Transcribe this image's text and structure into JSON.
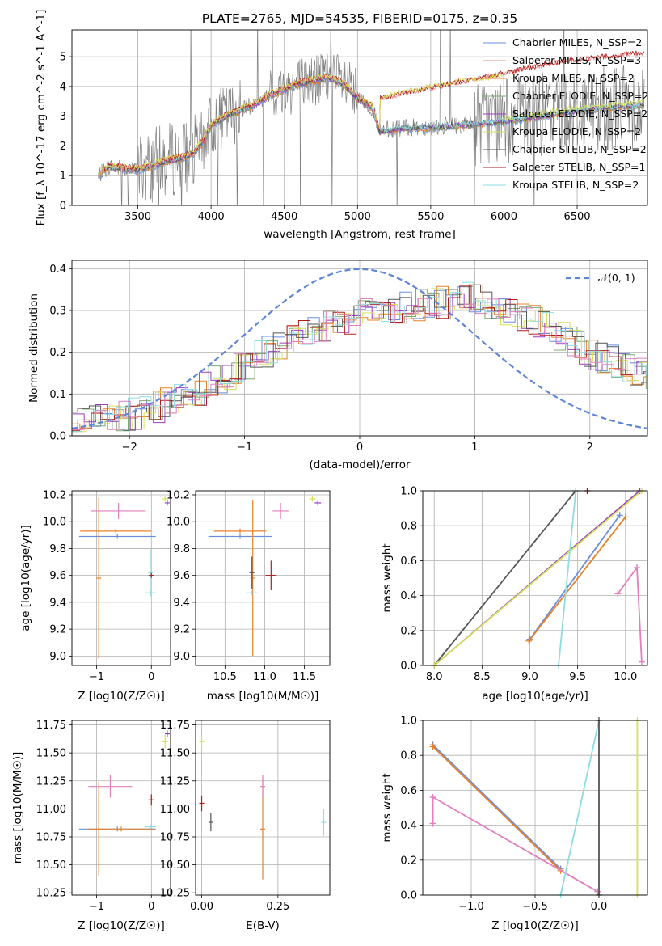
{
  "title": "PLATE=2765, MJD=54535, FIBERID=0175, z=0.35",
  "colors": {
    "chabrier_miles": "#6a8fdc",
    "salpeter_miles": "#e58b8b",
    "kroupa_miles": "#e8822a",
    "chabrier_elodie": "#7fa870",
    "salpeter_elodie": "#9b3fc1",
    "kroupa_elodie": "#d6e05a",
    "chabrier_stelib": "#555555",
    "salpeter_stelib": "#b01c1c",
    "kroupa_stelib": "#8fdde0",
    "pink": "#e27fbf",
    "data": "#7f7f7f",
    "normal": "#5f86d6"
  },
  "chart_data": [
    {
      "type": "line",
      "title": "PLATE=2765, MJD=54535, FIBERID=0175, z=0.35",
      "xlabel": "wavelength [Angstrom, rest frame]",
      "ylabel": "Flux [f_λ 10^-17 erg cm^-2 s^-1 A^-1]",
      "xlim": [
        3050,
        6980
      ],
      "ylim": [
        0,
        5.9
      ],
      "xticks": [
        "3500",
        "4000",
        "4500",
        "5000",
        "5500",
        "6000",
        "6500"
      ],
      "yticks": [
        "0",
        "1",
        "2",
        "3",
        "4",
        "5"
      ],
      "legend_position": "top-right",
      "legend": [
        "Chabrier MILES, N_SSP=2",
        "Salpeter MILES, N_SSP=3",
        "Kroupa MILES, N_SSP=2",
        "Chabrier ELODIE, N_SSP=2",
        "Salpeter ELODIE, N_SSP=2",
        "Kroupa ELODIE, N_SSP=2",
        "Chabrier STELIB, N_SSP=2",
        "Salpeter STELIB, N_SSP=1",
        "Kroupa STELIB, N_SSP=2"
      ],
      "continuum": {
        "x": [
          3230,
          3300,
          3400,
          3500,
          3600,
          3700,
          3800,
          3880,
          3950,
          4000,
          4100,
          4200,
          4300,
          4400,
          4500,
          4600,
          4700,
          4800,
          4900,
          5000,
          5100,
          5150,
          5300,
          5500,
          5700,
          5900,
          6100,
          6300,
          6500,
          6700,
          6960
        ],
        "y": [
          1.0,
          1.3,
          1.25,
          1.2,
          1.35,
          1.5,
          1.6,
          1.75,
          2.2,
          2.7,
          3.0,
          3.2,
          3.4,
          3.7,
          3.9,
          4.1,
          4.2,
          4.3,
          4.1,
          3.6,
          3.3,
          2.5,
          2.6,
          2.65,
          2.7,
          2.8,
          2.9,
          3.05,
          3.2,
          3.3,
          3.4
        ]
      },
      "red_models_high": {
        "x": [
          5150,
          5300,
          5500,
          5700,
          5900,
          6100,
          6300,
          6500,
          6700,
          6960
        ],
        "y": [
          3.55,
          3.7,
          3.9,
          4.1,
          4.3,
          4.5,
          4.7,
          4.85,
          4.95,
          5.1
        ]
      },
      "elodie_high": {
        "x": [
          5150,
          5300,
          5500,
          5700,
          5900,
          6000
        ],
        "y": [
          3.5,
          3.75,
          3.95,
          4.1,
          4.2,
          4.3
        ]
      }
    },
    {
      "type": "line",
      "xlabel": "(data-model)/error",
      "ylabel": "Normed distribution",
      "xlim": [
        -2.5,
        2.5
      ],
      "ylim": [
        0,
        0.42
      ],
      "xticks": [
        "−2",
        "−1",
        "0",
        "1",
        "2"
      ],
      "yticks": [
        "0.0",
        "0.1",
        "0.2",
        "0.3",
        "0.4"
      ],
      "legend": [
        "𝒩(0, 1)"
      ],
      "legend_position": "top-right",
      "histogram_envelope": {
        "x": [
          -2.5,
          -2.0,
          -1.5,
          -1.0,
          -0.5,
          0.0,
          0.5,
          1.0,
          1.5,
          2.0,
          2.5
        ],
        "y": [
          0.02,
          0.05,
          0.09,
          0.17,
          0.24,
          0.29,
          0.31,
          0.33,
          0.28,
          0.2,
          0.15
        ]
      }
    },
    {
      "type": "scatter",
      "xlabel": "Z [log10(Z/Z☉)]",
      "ylabel": "age  [log10(age/yr)]",
      "xlim": [
        -1.45,
        0.35
      ],
      "ylim": [
        8.93,
        10.23
      ],
      "xticks": [
        "−1",
        "0"
      ],
      "yticks": [
        "9.0",
        "9.2",
        "9.4",
        "9.6",
        "9.8",
        "10.0",
        "10.2"
      ],
      "points": [
        {
          "c": "chabrier_miles",
          "x": -0.62,
          "y": 9.89,
          "dx": 0.7,
          "dy": 0.0
        },
        {
          "c": "kroupa_miles",
          "x": -0.65,
          "y": 9.93,
          "dx": 0.65,
          "dy": 0.0
        },
        {
          "c": "kroupa_miles",
          "x": -0.96,
          "y": 9.58,
          "dx": 0.0,
          "dy": 0.6
        },
        {
          "c": "pink",
          "x": -0.6,
          "y": 10.08,
          "dx": 0.5,
          "dy": 0.06
        },
        {
          "c": "kroupa_stelib",
          "x": -0.01,
          "y": 9.47,
          "dx": 0.1,
          "dy": 0.02
        },
        {
          "c": "kroupa_stelib",
          "x": -0.02,
          "y": 9.62,
          "dx": 0.0,
          "dy": 0.18
        },
        {
          "c": "salpeter_stelib",
          "x": 0.0,
          "y": 9.6,
          "dx": 0.05,
          "dy": 0.0
        },
        {
          "c": "kroupa_elodie",
          "x": 0.25,
          "y": 10.17,
          "dx": 0.05,
          "dy": 0.02
        },
        {
          "c": "salpeter_elodie",
          "x": 0.29,
          "y": 10.14,
          "dx": 0.04,
          "dy": 0.02
        }
      ]
    },
    {
      "type": "scatter",
      "xlabel": "mass [log10(M/M☉)]",
      "ylabel": "",
      "xlim": [
        10.13,
        11.82
      ],
      "ylim": [
        8.93,
        10.23
      ],
      "xticks": [
        "10.5",
        "11.0",
        "11.5"
      ],
      "yticks": [
        "9.0",
        "9.2",
        "9.4",
        "9.6",
        "9.8",
        "10.0",
        "10.2"
      ],
      "points": [
        {
          "c": "chabrier_miles",
          "x": 10.69,
          "y": 9.89,
          "dx": 0.4,
          "dy": 0.0
        },
        {
          "c": "kroupa_miles",
          "x": 10.69,
          "y": 9.93,
          "dx": 0.33,
          "dy": 0.0
        },
        {
          "c": "kroupa_miles",
          "x": 10.85,
          "y": 9.58,
          "dx": 0.0,
          "dy": 0.58
        },
        {
          "c": "pink",
          "x": 11.2,
          "y": 10.08,
          "dx": 0.1,
          "dy": 0.06
        },
        {
          "c": "kroupa_stelib",
          "x": 10.84,
          "y": 9.47,
          "dx": 0.07,
          "dy": 0.0
        },
        {
          "c": "chabrier_stelib",
          "x": 10.84,
          "y": 9.62,
          "dx": 0.0,
          "dy": 0.12
        },
        {
          "c": "salpeter_stelib",
          "x": 11.08,
          "y": 9.6,
          "dx": 0.07,
          "dy": 0.11
        },
        {
          "c": "kroupa_elodie",
          "x": 11.6,
          "y": 10.17,
          "dx": 0.04,
          "dy": 0.02
        },
        {
          "c": "salpeter_elodie",
          "x": 11.67,
          "y": 10.14,
          "dx": 0.04,
          "dy": 0.02
        }
      ]
    },
    {
      "type": "line",
      "xlabel": "age  [log10(age/yr)]",
      "ylabel": "mass weight",
      "xlim": [
        7.88,
        10.23
      ],
      "ylim": [
        0,
        1
      ],
      "xticks": [
        "8.0",
        "8.5",
        "9.0",
        "9.5",
        "10.0"
      ],
      "yticks": [
        "0.0",
        "0.2",
        "0.4",
        "0.6",
        "0.8",
        "1.0"
      ],
      "series": [
        {
          "c": "chabrier_stelib",
          "x": [
            8.0,
            9.48
          ],
          "y": [
            0.0,
            1.0
          ]
        },
        {
          "c": "salpeter_elodie",
          "x": [
            8.0,
            10.15
          ],
          "y": [
            0.0,
            1.0
          ]
        },
        {
          "c": "kroupa_elodie",
          "x": [
            8.0,
            10.17
          ],
          "y": [
            0.0,
            1.0
          ]
        },
        {
          "c": "chabrier_miles",
          "x": [
            9.0,
            9.94
          ],
          "y": [
            0.15,
            0.86
          ]
        },
        {
          "c": "kroupa_miles",
          "x": [
            8.99,
            10.0
          ],
          "y": [
            0.14,
            0.85
          ]
        },
        {
          "c": "kroupa_stelib",
          "x": [
            9.3,
            9.48
          ],
          "y": [
            0.0,
            1.0
          ]
        },
        {
          "c": "pink",
          "x": [
            9.92,
            10.12,
            10.17
          ],
          "y": [
            0.41,
            0.56,
            0.02
          ]
        },
        {
          "c": "salpeter_stelib",
          "x": [
            9.6
          ],
          "y": [
            1.0
          ]
        }
      ]
    },
    {
      "type": "scatter",
      "xlabel": "Z [log10(Z/Z☉)]",
      "ylabel": "mass [log10(M/M☉)]",
      "xlim": [
        -1.45,
        0.35
      ],
      "ylim": [
        10.23,
        11.79
      ],
      "xticks": [
        "−1",
        "0"
      ],
      "yticks": [
        "10.25",
        "10.50",
        "10.75",
        "11.00",
        "11.25",
        "11.50",
        "11.75"
      ],
      "points": [
        {
          "c": "chabrier_miles",
          "x": -0.62,
          "y": 10.82,
          "dx": 0.7,
          "dy": 0.0
        },
        {
          "c": "kroupa_miles",
          "x": -0.55,
          "y": 10.82,
          "dx": 0.6,
          "dy": 0.0
        },
        {
          "c": "kroupa_miles",
          "x": -0.96,
          "y": 10.82,
          "dx": 0.0,
          "dy": 0.42
        },
        {
          "c": "pink",
          "x": -0.75,
          "y": 11.2,
          "dx": 0.4,
          "dy": 0.1
        },
        {
          "c": "kroupa_stelib",
          "x": -0.02,
          "y": 10.84,
          "dx": 0.1,
          "dy": 0.0
        },
        {
          "c": "salpeter_stelib",
          "x": 0.0,
          "y": 11.08,
          "dx": 0.05,
          "dy": 0.05
        },
        {
          "c": "kroupa_elodie",
          "x": 0.25,
          "y": 11.6,
          "dx": 0.05,
          "dy": 0.06
        },
        {
          "c": "salpeter_elodie",
          "x": 0.29,
          "y": 11.67,
          "dx": 0.04,
          "dy": 0.03
        }
      ]
    },
    {
      "type": "scatter",
      "xlabel": "E(B-V)",
      "ylabel": "",
      "xlim": [
        -0.02,
        0.42
      ],
      "ylim": [
        10.23,
        11.79
      ],
      "xticks": [
        "0.00",
        "0.25"
      ],
      "yticks": [
        "10.25",
        "10.50",
        "10.75",
        "11.00",
        "11.25",
        "11.50",
        "11.75"
      ],
      "points": [
        {
          "c": "kroupa_elodie",
          "x": 0.0,
          "y": 11.6,
          "dx": 0.0,
          "dy": 0.06
        },
        {
          "c": "salpeter_stelib",
          "x": 0.0,
          "y": 11.05,
          "dx": 0.0,
          "dy": 0.07
        },
        {
          "c": "chabrier_stelib",
          "x": 0.03,
          "y": 10.88,
          "dx": 0.0,
          "dy": 0.08
        },
        {
          "c": "kroupa_miles",
          "x": 0.2,
          "y": 10.82,
          "dx": 0.0,
          "dy": 0.45
        },
        {
          "c": "pink",
          "x": 0.2,
          "y": 11.2,
          "dx": 0.0,
          "dy": 0.1
        },
        {
          "c": "kroupa_stelib",
          "x": 0.4,
          "y": 10.88,
          "dx": 0.0,
          "dy": 0.12
        }
      ]
    },
    {
      "type": "line",
      "xlabel": "Z [log10(Z/Z☉)]",
      "ylabel": "mass weight",
      "xlim": [
        -1.38,
        0.38
      ],
      "ylim": [
        0,
        1
      ],
      "xticks": [
        "−1.0",
        "−0.5",
        "0.0"
      ],
      "yticks": [
        "0.0",
        "0.2",
        "0.4",
        "0.6",
        "0.8",
        "1.0"
      ],
      "series": [
        {
          "c": "chabrier_miles",
          "x": [
            -1.3,
            -0.3
          ],
          "y": [
            0.86,
            0.15
          ]
        },
        {
          "c": "kroupa_miles",
          "x": [
            -1.3,
            -0.3
          ],
          "y": [
            0.85,
            0.14
          ]
        },
        {
          "c": "pink",
          "x": [
            -1.3,
            -1.3,
            -0.01
          ],
          "y": [
            0.41,
            0.56,
            0.02
          ]
        },
        {
          "c": "kroupa_stelib",
          "x": [
            -0.3,
            0.0
          ],
          "y": [
            0.0,
            1.0
          ]
        },
        {
          "c": "chabrier_stelib",
          "x": [
            0.0,
            0.0
          ],
          "y": [
            0.0,
            1.0
          ]
        },
        {
          "c": "kroupa_elodie",
          "x": [
            0.3,
            0.3
          ],
          "y": [
            0.0,
            1.0
          ]
        }
      ]
    }
  ]
}
